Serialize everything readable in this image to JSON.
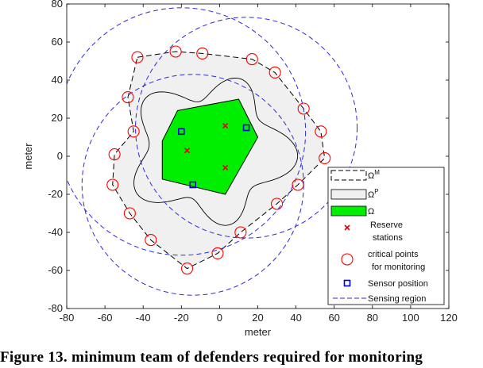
{
  "chart_data": {
    "type": "scatter",
    "xlabel": "meter",
    "ylabel": "meter",
    "xlim": [
      -80,
      120
    ],
    "ylim": [
      -80,
      80
    ],
    "xticks": [
      "-80",
      "-60",
      "-40",
      "-20",
      "0",
      "20",
      "40",
      "60",
      "80",
      "100",
      "120"
    ],
    "yticks": [
      "80",
      "60",
      "40",
      "20",
      "0",
      "-20",
      "-40",
      "-60",
      "-80"
    ],
    "grid": false,
    "legend_position": "right",
    "legend": [
      {
        "label": "Ω^M",
        "marker": "dashed-rect"
      },
      {
        "label": "Ω^P",
        "marker": "gray-rect"
      },
      {
        "label": "Ω",
        "marker": "green-rect"
      },
      {
        "label": "Reserve stations",
        "marker": "x"
      },
      {
        "label": "critical points for monitoring",
        "marker": "circle"
      },
      {
        "label": "Sensor position",
        "marker": "square"
      },
      {
        "label": "Sensing region",
        "marker": "dashed-line"
      }
    ],
    "omega_polygon": [
      [
        -30,
        8
      ],
      [
        -22,
        24
      ],
      [
        10,
        30
      ],
      [
        20,
        10
      ],
      [
        3,
        -20
      ],
      [
        -30,
        -12
      ]
    ],
    "reserve_stations": [
      [
        -17,
        3
      ],
      [
        3,
        16
      ],
      [
        3,
        -6
      ]
    ],
    "sensor_positions": [
      [
        -20,
        13
      ],
      [
        14,
        15
      ],
      [
        -14,
        -15
      ]
    ],
    "critical_points": [
      [
        -43,
        52
      ],
      [
        -23,
        55
      ],
      [
        -9,
        54
      ],
      [
        17,
        51
      ],
      [
        29,
        44
      ],
      [
        44,
        25
      ],
      [
        53,
        13
      ],
      [
        55,
        -1
      ],
      [
        41,
        -15
      ],
      [
        30,
        -25
      ],
      [
        11,
        -40
      ],
      [
        -1,
        -51
      ],
      [
        -17,
        -59
      ],
      [
        -36,
        -44
      ],
      [
        -47,
        -30
      ],
      [
        -56,
        -15
      ],
      [
        -55,
        1
      ],
      [
        -45,
        13
      ],
      [
        -48,
        31
      ]
    ],
    "sensing_regions": [
      {
        "cx": -20,
        "cy": 13,
        "r": 65
      },
      {
        "cx": 14,
        "cy": 15,
        "r": 58
      },
      {
        "cx": -14,
        "cy": -15,
        "r": 58
      }
    ],
    "colors": {
      "omega": "#00ee00",
      "omega_p": "#f0f0f0",
      "critical": "#ff0000",
      "reserve": "#dd0000",
      "sensor": "#0000cc",
      "sensing": "#2a2ae0"
    }
  },
  "caption": "Figure 13. minimum team of defenders required for monitoring"
}
